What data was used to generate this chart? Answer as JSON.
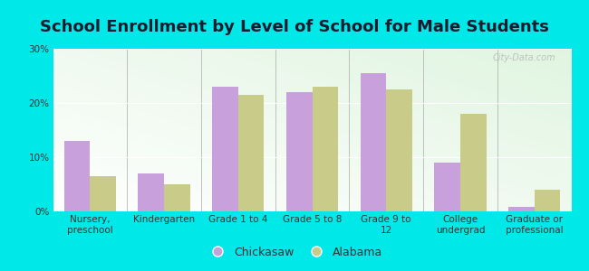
{
  "title": "School Enrollment by Level of School for Male Students",
  "categories": [
    "Nursery,\npreschool",
    "Kindergarten",
    "Grade 1 to 4",
    "Grade 5 to 8",
    "Grade 9 to\n12",
    "College\nundergrad",
    "Graduate or\nprofessional"
  ],
  "chickasaw": [
    13.0,
    7.0,
    23.0,
    22.0,
    25.5,
    9.0,
    0.8
  ],
  "alabama": [
    6.5,
    5.0,
    21.5,
    23.0,
    22.5,
    18.0,
    4.0
  ],
  "chickasaw_color": "#c8a0dc",
  "alabama_color": "#c8cc88",
  "background_outer": "#00e8e8",
  "ylim": [
    0,
    30
  ],
  "yticks": [
    0,
    10,
    20,
    30
  ],
  "bar_width": 0.35,
  "title_fontsize": 13,
  "tick_fontsize": 7.5,
  "legend_fontsize": 9
}
